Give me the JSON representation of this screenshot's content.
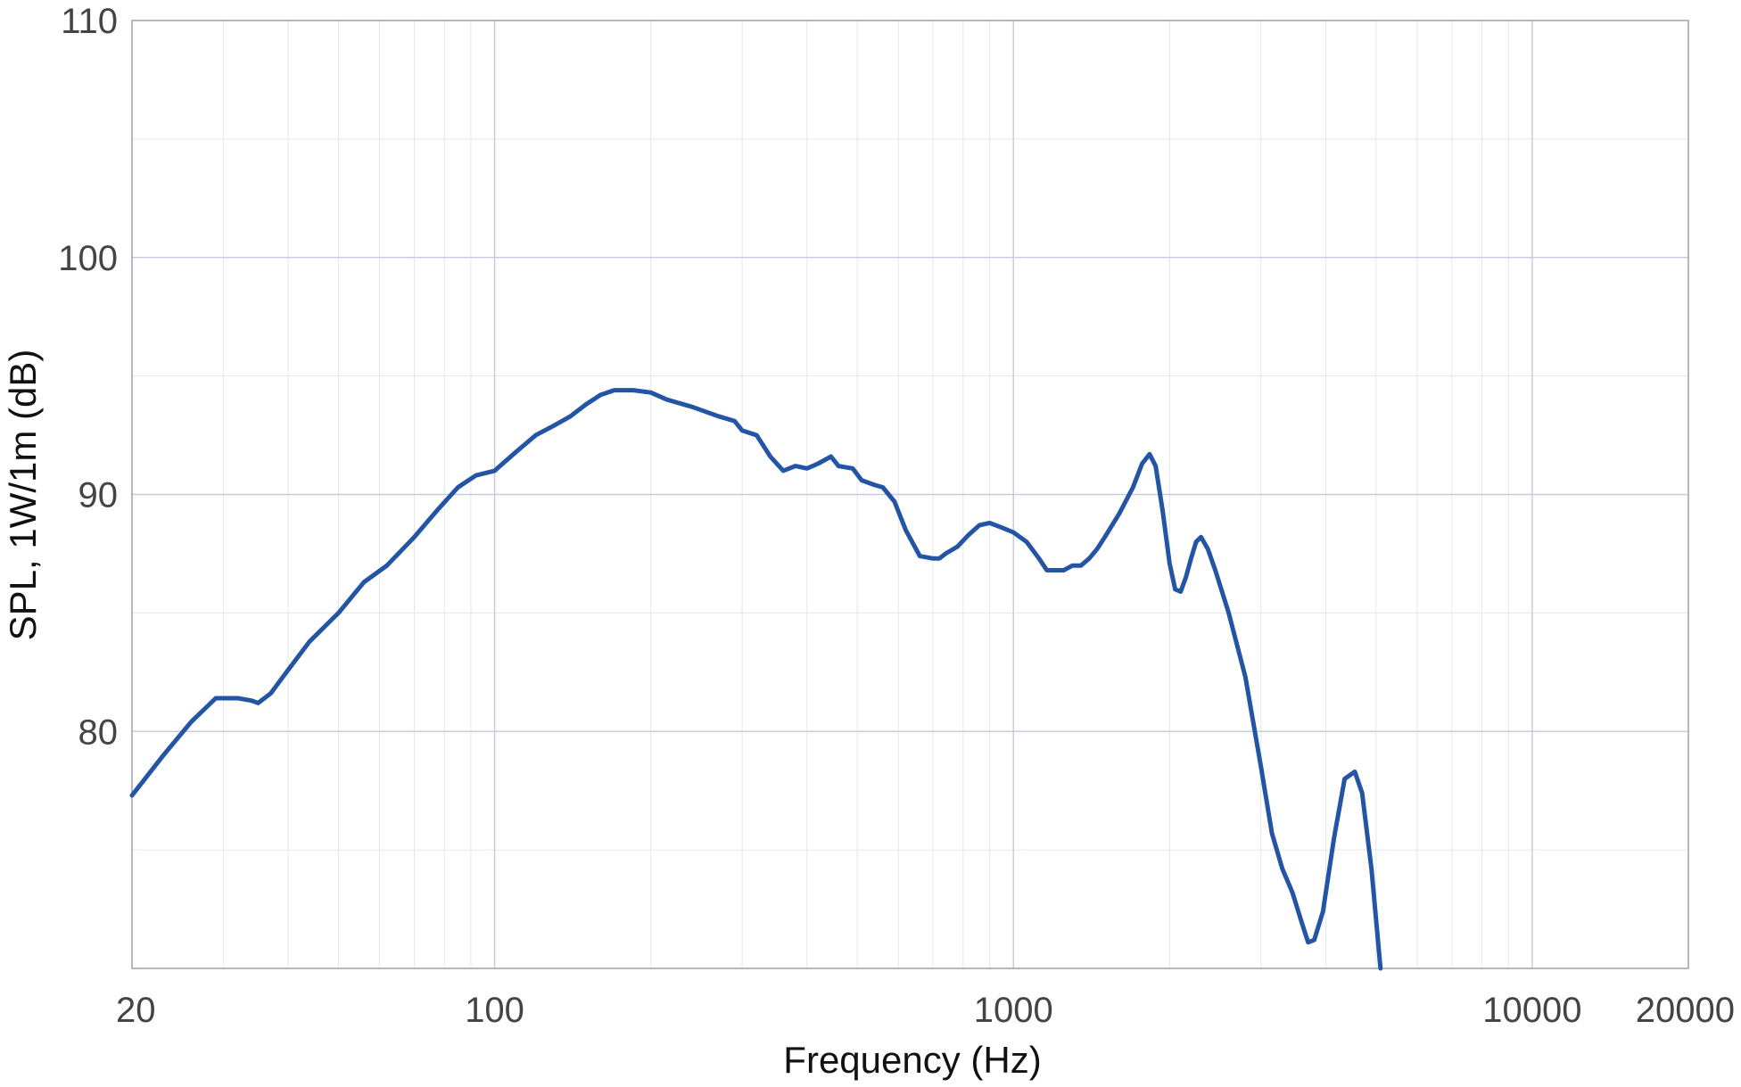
{
  "chart_data": {
    "type": "line",
    "title": "",
    "xlabel": "Frequency (Hz)",
    "ylabel": "SPL, 1W/1m (dB)",
    "x_scale": "log",
    "xlim": [
      20,
      20000
    ],
    "ylim": [
      70,
      110
    ],
    "x_tick_labels": [
      "20",
      "100",
      "1000",
      "10000",
      "20000"
    ],
    "x_ticks": [
      20,
      100,
      1000,
      10000,
      20000
    ],
    "y_tick_labels": [
      "80",
      "90",
      "100",
      "110"
    ],
    "y_ticks": [
      80,
      90,
      100,
      110
    ],
    "grid": true,
    "colors": {
      "line": "#2455a4",
      "grid_major": "#c8cce0",
      "grid_minor": "#e4e6f0",
      "frame": "#9aa0b0"
    },
    "series": [
      {
        "points": [
          [
            20,
            77.3
          ],
          [
            23,
            79.0
          ],
          [
            26,
            80.4
          ],
          [
            29,
            81.4
          ],
          [
            32,
            81.4
          ],
          [
            34,
            81.3
          ],
          [
            35,
            81.2
          ],
          [
            37,
            81.6
          ],
          [
            40,
            82.6
          ],
          [
            44,
            83.8
          ],
          [
            50,
            85.0
          ],
          [
            56,
            86.3
          ],
          [
            62,
            87.0
          ],
          [
            70,
            88.2
          ],
          [
            78,
            89.4
          ],
          [
            85,
            90.3
          ],
          [
            92,
            90.8
          ],
          [
            100,
            91.0
          ],
          [
            110,
            91.8
          ],
          [
            120,
            92.5
          ],
          [
            130,
            92.9
          ],
          [
            140,
            93.3
          ],
          [
            150,
            93.8
          ],
          [
            160,
            94.2
          ],
          [
            170,
            94.4
          ],
          [
            185,
            94.4
          ],
          [
            200,
            94.3
          ],
          [
            215,
            94.0
          ],
          [
            240,
            93.7
          ],
          [
            270,
            93.3
          ],
          [
            290,
            93.1
          ],
          [
            300,
            92.7
          ],
          [
            320,
            92.5
          ],
          [
            340,
            91.6
          ],
          [
            360,
            91.0
          ],
          [
            380,
            91.2
          ],
          [
            400,
            91.1
          ],
          [
            420,
            91.3
          ],
          [
            445,
            91.6
          ],
          [
            460,
            91.2
          ],
          [
            490,
            91.1
          ],
          [
            510,
            90.6
          ],
          [
            540,
            90.4
          ],
          [
            560,
            90.3
          ],
          [
            590,
            89.7
          ],
          [
            620,
            88.5
          ],
          [
            660,
            87.4
          ],
          [
            700,
            87.3
          ],
          [
            720,
            87.3
          ],
          [
            740,
            87.5
          ],
          [
            780,
            87.8
          ],
          [
            820,
            88.3
          ],
          [
            860,
            88.7
          ],
          [
            900,
            88.8
          ],
          [
            950,
            88.6
          ],
          [
            1000,
            88.4
          ],
          [
            1060,
            88.0
          ],
          [
            1120,
            87.3
          ],
          [
            1160,
            86.8
          ],
          [
            1200,
            86.8
          ],
          [
            1250,
            86.8
          ],
          [
            1300,
            87.0
          ],
          [
            1350,
            87.0
          ],
          [
            1400,
            87.3
          ],
          [
            1450,
            87.7
          ],
          [
            1500,
            88.2
          ],
          [
            1600,
            89.2
          ],
          [
            1700,
            90.3
          ],
          [
            1770,
            91.3
          ],
          [
            1830,
            91.7
          ],
          [
            1880,
            91.2
          ],
          [
            1940,
            89.3
          ],
          [
            2000,
            87.1
          ],
          [
            2050,
            86.0
          ],
          [
            2100,
            85.9
          ],
          [
            2150,
            86.5
          ],
          [
            2200,
            87.3
          ],
          [
            2250,
            88.0
          ],
          [
            2300,
            88.2
          ],
          [
            2370,
            87.7
          ],
          [
            2450,
            86.8
          ],
          [
            2600,
            85.0
          ],
          [
            2800,
            82.3
          ],
          [
            3000,
            78.5
          ],
          [
            3150,
            75.7
          ],
          [
            3300,
            74.2
          ],
          [
            3450,
            73.2
          ],
          [
            3600,
            71.9
          ],
          [
            3700,
            71.1
          ],
          [
            3800,
            71.2
          ],
          [
            3950,
            72.4
          ],
          [
            4150,
            75.5
          ],
          [
            4350,
            78.0
          ],
          [
            4550,
            78.3
          ],
          [
            4700,
            77.4
          ],
          [
            4900,
            74.2
          ],
          [
            5100,
            70.0
          ]
        ]
      }
    ]
  }
}
